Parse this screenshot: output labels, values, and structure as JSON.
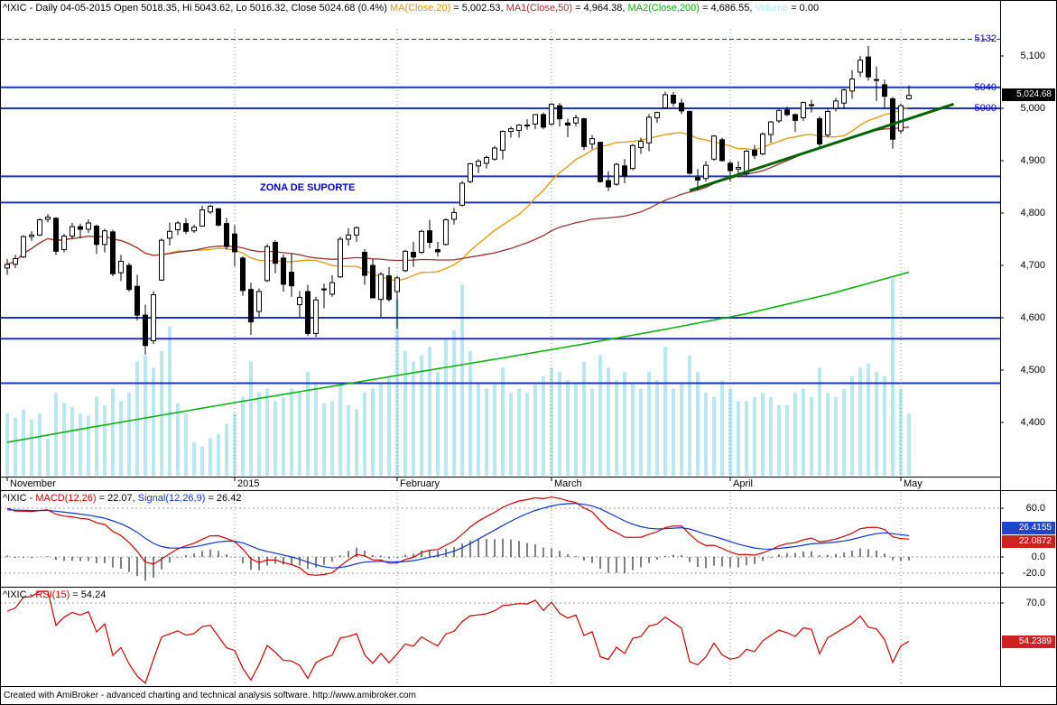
{
  "window": {
    "footer": "Created with AmiBroker - advanced charting and technical analysis software. http://www.amibroker.com"
  },
  "main_panel": {
    "title": {
      "prefix": "^IXIC - Daily 04-05-2015 Open 5018.35, Hi 5043.62, Lo 5016.32, Close 5024.68 (0.4%) ",
      "ma20_label": "MA(Close,20)",
      "ma20_value": " = 5,002.53, ",
      "ma50_label": "MA1(Close,50)",
      "ma50_value": " = 4,964.38, ",
      "ma200_label": "MA2(Close,200)",
      "ma200_value": " = 4,686.55, ",
      "volume_label": "Volume",
      "volume_value": " = 0.00"
    },
    "support_zone_text": "ZONA DE SUPORTE",
    "last_price_box": "5,024.68"
  },
  "macd_panel": {
    "title_prefix": "^IXIC - ",
    "macd_label": "MACD(12,26)",
    "macd_value": " = 22.07, ",
    "signal_label": "Signal(12,26,9)",
    "signal_value": " = 26.42",
    "signal_box": "26.4155",
    "macd_box": "22.0872"
  },
  "rsi_panel": {
    "title_prefix": "^IXIC - ",
    "rsi_label": "RSI(15)",
    "rsi_value": " = 54.24",
    "rsi_box": "54.2389"
  },
  "chart_data": {
    "type": "candlestick",
    "symbol": "^IXIC",
    "timeframe": "Daily",
    "last_bar": {
      "date": "04-05-2015",
      "open": 5018.35,
      "high": 5043.62,
      "low": 5016.32,
      "close": 5024.68,
      "change_pct": "0.4%"
    },
    "overlays": {
      "ma20_last": 5002.53,
      "ma50_last": 4964.38,
      "ma200_last": 4686.55,
      "volume_last": 0.0
    },
    "macd": {
      "fast": 12,
      "slow": 26,
      "signal_period": 9,
      "macd_last": 22.0872,
      "signal_last": 26.4155,
      "axis": [
        {
          "label": "60.0",
          "value": 60
        },
        {
          "label": "0.0",
          "value": 0
        },
        {
          "label": "-20.0",
          "value": -20
        }
      ]
    },
    "rsi": {
      "period": 15,
      "last": 54.2389,
      "axis": [
        {
          "label": "70.0",
          "value": 70
        }
      ]
    },
    "y_axis": [
      {
        "label": "5,100",
        "price": 5100
      },
      {
        "label": "5,000",
        "price": 5000
      },
      {
        "label": "4,900",
        "price": 4900
      },
      {
        "label": "4,800",
        "price": 4800
      },
      {
        "label": "4,700",
        "price": 4700
      },
      {
        "label": "4,600",
        "price": 4600
      },
      {
        "label": "4,500",
        "price": 4500
      },
      {
        "label": "4,400",
        "price": 4400
      }
    ],
    "x_axis_months": [
      {
        "label": "November",
        "bar": 0
      },
      {
        "label": "2015",
        "bar": 28
      },
      {
        "label": "February",
        "bar": 48
      },
      {
        "label": "March",
        "bar": 67
      },
      {
        "label": "April",
        "bar": 89
      },
      {
        "label": "May",
        "bar": 110
      }
    ],
    "levels": [
      {
        "price": 5132,
        "label": "5132",
        "dashed": true
      },
      {
        "price": 5040,
        "label": "5040"
      },
      {
        "price": 5000,
        "label": "5000"
      },
      {
        "price": 4870
      },
      {
        "price": 4820
      },
      {
        "price": 4600
      },
      {
        "price": 4560
      },
      {
        "price": 4475
      }
    ],
    "support_zone": {
      "text": "ZONA DE SUPORTE",
      "between": [
        4870,
        4820
      ]
    },
    "trendline": {
      "bar1": 84,
      "price1": 4843,
      "bar2": 116.5,
      "price2": 5008
    },
    "ma200_points": [
      4362,
      4390,
      4417,
      4444,
      4470,
      4496,
      4522,
      4549,
      4577,
      4607,
      4644,
      4687
    ],
    "indicator_params": {
      "macd_init_gap": 60,
      "macd_init_signal": 58,
      "rsi_init_gain": 13,
      "rsi_init_loss": 6.5
    },
    "colors": {
      "ma20": "#dd9900",
      "ma50": "#993333",
      "ma200": "#00b000",
      "volume": "#b9e8f0",
      "level_blue": "#2233bb",
      "label_blue": "#0000cc",
      "macd_line": "#cc0000",
      "signal_line": "#1133cc",
      "rsi_line": "#cc0000",
      "up_candle": "#ffffff",
      "down_candle": "#000000",
      "trend": "#006400",
      "box_black": "#000000",
      "box_blue": "#2244cc",
      "box_red": "#cc2222"
    },
    "candles": [
      [
        4695,
        4712,
        4682,
        4702,
        30
      ],
      [
        4702,
        4720,
        4695,
        4713,
        28
      ],
      [
        4716,
        4758,
        4714,
        4755,
        32
      ],
      [
        4755,
        4765,
        4747,
        4758,
        27
      ],
      [
        4758,
        4790,
        4756,
        4787,
        30
      ],
      [
        4788,
        4798,
        4782,
        4792,
        18
      ],
      [
        4790,
        4792,
        4720,
        4727,
        40
      ],
      [
        4730,
        4760,
        4725,
        4756,
        35
      ],
      [
        4756,
        4781,
        4750,
        4774,
        33
      ],
      [
        4774,
        4780,
        4752,
        4769,
        30
      ],
      [
        4769,
        4788,
        4762,
        4781,
        29
      ],
      [
        4775,
        4778,
        4722,
        4740,
        38
      ],
      [
        4740,
        4770,
        4725,
        4766,
        34
      ],
      [
        4764,
        4768,
        4679,
        4684,
        42
      ],
      [
        4686,
        4720,
        4670,
        4708,
        36
      ],
      [
        4700,
        4705,
        4650,
        4654,
        40
      ],
      [
        4660,
        4682,
        4595,
        4605,
        55
      ],
      [
        4605,
        4625,
        4530,
        4547,
        58
      ],
      [
        4556,
        4651,
        4550,
        4644,
        52
      ],
      [
        4672,
        4752,
        4670,
        4748,
        60
      ],
      [
        4752,
        4782,
        4738,
        4765,
        72
      ],
      [
        4768,
        4785,
        4758,
        4781,
        35
      ],
      [
        4780,
        4790,
        4760,
        4765,
        30
      ],
      [
        4766,
        4778,
        4762,
        4773,
        16
      ],
      [
        4775,
        4814,
        4775,
        4806,
        14
      ],
      [
        4802,
        4816,
        4798,
        4813,
        18
      ],
      [
        4808,
        4810,
        4774,
        4777,
        20
      ],
      [
        4780,
        4791,
        4730,
        4736,
        25
      ],
      [
        4760,
        4777,
        4698,
        4726,
        30
      ],
      [
        4714,
        4717,
        4642,
        4652,
        38
      ],
      [
        4654,
        4667,
        4567,
        4592,
        55
      ],
      [
        4612,
        4656,
        4601,
        4650,
        40
      ],
      [
        4671,
        4741,
        4668,
        4736,
        42
      ],
      [
        4744,
        4748,
        4685,
        4704,
        36
      ],
      [
        4714,
        4721,
        4650,
        4664,
        38
      ],
      [
        4687,
        4723,
        4640,
        4661,
        42
      ],
      [
        4625,
        4651,
        4601,
        4639,
        40
      ],
      [
        4650,
        4663,
        4565,
        4570,
        50
      ],
      [
        4570,
        4640,
        4563,
        4634,
        45
      ],
      [
        4655,
        4665,
        4618,
        4654,
        35
      ],
      [
        4645,
        4681,
        4640,
        4667,
        36
      ],
      [
        4678,
        4755,
        4676,
        4750,
        44
      ],
      [
        4750,
        4771,
        4738,
        4758,
        34
      ],
      [
        4758,
        4774,
        4745,
        4772,
        32
      ],
      [
        4725,
        4731,
        4663,
        4681,
        40
      ],
      [
        4700,
        4712,
        4637,
        4638,
        42
      ],
      [
        4635,
        4687,
        4601,
        4683,
        45
      ],
      [
        4680,
        4697,
        4631,
        4635,
        48
      ],
      [
        4650,
        4680,
        4580,
        4676,
        85
      ],
      [
        4690,
        4730,
        4687,
        4727,
        60
      ],
      [
        4725,
        4745,
        4697,
        4716,
        55
      ],
      [
        4725,
        4768,
        4722,
        4765,
        58
      ],
      [
        4766,
        4787,
        4733,
        4744,
        62
      ],
      [
        4730,
        4745,
        4717,
        4726,
        50
      ],
      [
        4740,
        4790,
        4738,
        4787,
        66
      ],
      [
        4788,
        4810,
        4778,
        4801,
        70
      ],
      [
        4815,
        4861,
        4812,
        4857,
        92
      ],
      [
        4860,
        4896,
        4857,
        4894,
        60
      ],
      [
        4890,
        4903,
        4876,
        4899,
        45
      ],
      [
        4895,
        4910,
        4885,
        4906,
        42
      ],
      [
        4903,
        4928,
        4900,
        4924,
        44
      ],
      [
        4920,
        4958,
        4902,
        4956,
        52
      ],
      [
        4956,
        4965,
        4944,
        4961,
        40
      ],
      [
        4958,
        4970,
        4944,
        4968,
        42
      ],
      [
        4968,
        4979,
        4959,
        4967,
        40
      ],
      [
        4970,
        4989,
        4960,
        4988,
        44
      ],
      [
        4988,
        4992,
        4960,
        4964,
        48
      ],
      [
        4970,
        5010,
        4967,
        5008,
        52
      ],
      [
        5005,
        5010,
        4965,
        4980,
        50
      ],
      [
        4972,
        4980,
        4945,
        4968,
        46
      ],
      [
        4972,
        4988,
        4966,
        4982,
        44
      ],
      [
        4980,
        4982,
        4920,
        4927,
        55
      ],
      [
        4932,
        4949,
        4922,
        4942,
        42
      ],
      [
        4935,
        4936,
        4858,
        4860,
        58
      ],
      [
        4862,
        4880,
        4842,
        4850,
        52
      ],
      [
        4855,
        4896,
        4852,
        4893,
        46
      ],
      [
        4890,
        4903,
        4857,
        4871,
        50
      ],
      [
        4885,
        4932,
        4882,
        4929,
        44
      ],
      [
        4925,
        4944,
        4913,
        4937,
        42
      ],
      [
        4934,
        4989,
        4918,
        4983,
        50
      ],
      [
        4982,
        4994,
        4972,
        4992,
        46
      ],
      [
        5001,
        5032,
        4999,
        5026,
        62
      ],
      [
        5025,
        5031,
        5003,
        5010,
        42
      ],
      [
        5010,
        5018,
        4989,
        4995,
        44
      ],
      [
        4994,
        4996,
        4873,
        4876,
        58
      ],
      [
        4868,
        4884,
        4843,
        4863,
        50
      ],
      [
        4866,
        4899,
        4860,
        4891,
        40
      ],
      [
        4903,
        4949,
        4900,
        4947,
        38
      ],
      [
        4940,
        4944,
        4898,
        4900,
        46
      ],
      [
        4895,
        4900,
        4860,
        4881,
        42
      ],
      [
        4884,
        4899,
        4868,
        4887,
        36
      ],
      [
        4875,
        4921,
        4870,
        4918,
        36
      ],
      [
        4920,
        4930,
        4903,
        4910,
        38
      ],
      [
        4913,
        4954,
        4910,
        4951,
        40
      ],
      [
        4950,
        4976,
        4934,
        4974,
        38
      ],
      [
        4976,
        4998,
        4972,
        4996,
        34
      ],
      [
        4997,
        5003,
        4985,
        4988,
        34
      ],
      [
        4988,
        4990,
        4955,
        4977,
        40
      ],
      [
        4982,
        5013,
        4976,
        5011,
        42
      ],
      [
        5007,
        5016,
        4992,
        5007,
        38
      ],
      [
        4980,
        4985,
        4925,
        4932,
        52
      ],
      [
        4949,
        4998,
        4945,
        4994,
        40
      ],
      [
        5000,
        5020,
        4994,
        5014,
        38
      ],
      [
        5010,
        5038,
        4999,
        5035,
        42
      ],
      [
        5033,
        5073,
        5018,
        5056,
        48
      ],
      [
        5069,
        5100,
        5060,
        5092,
        52
      ],
      [
        5098,
        5119,
        5053,
        5060,
        54
      ],
      [
        5055,
        5080,
        5014,
        5055,
        50
      ],
      [
        5045,
        5055,
        5000,
        5023,
        48
      ],
      [
        5018,
        5022,
        4923,
        4941,
        95
      ],
      [
        4957,
        5009,
        4952,
        5005,
        42
      ],
      [
        5018.35,
        5043.62,
        5016.32,
        5024.68,
        30
      ]
    ]
  }
}
